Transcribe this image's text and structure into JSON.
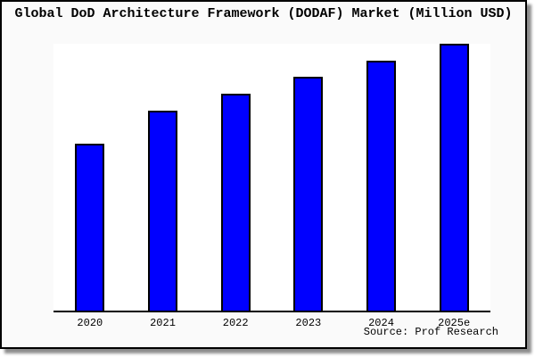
{
  "title": "Global DoD Architecture Framework (DODAF) Market (Million USD)",
  "source_note": "Source: Prof Research",
  "colors": {
    "card_background": "#fafafa",
    "plot_background": "#ffffff",
    "bar_fill": "#0000ff",
    "bar_border": "#000000",
    "axis": "#000000",
    "text": "#000000"
  },
  "chart_data": {
    "type": "bar",
    "title": "Global DoD Architecture Framework (DODAF) Market (Million USD)",
    "categories": [
      "2020",
      "2021",
      "2022",
      "2023",
      "2024",
      "2025e"
    ],
    "values": [
      62.5,
      74.9,
      81.3,
      87.6,
      93.6,
      100
    ],
    "value_scale": "relative index, tallest bar (2025e) = 100; y-axis has no visible ticks or labels",
    "xlabel": "",
    "ylabel": "",
    "ylim": [
      0,
      100
    ],
    "gridlines": false,
    "legend": false,
    "y_axis_visible": false,
    "bar_color": "#0000ff",
    "bar_border_color": "#000000",
    "annotation": "Source: Prof Research"
  }
}
